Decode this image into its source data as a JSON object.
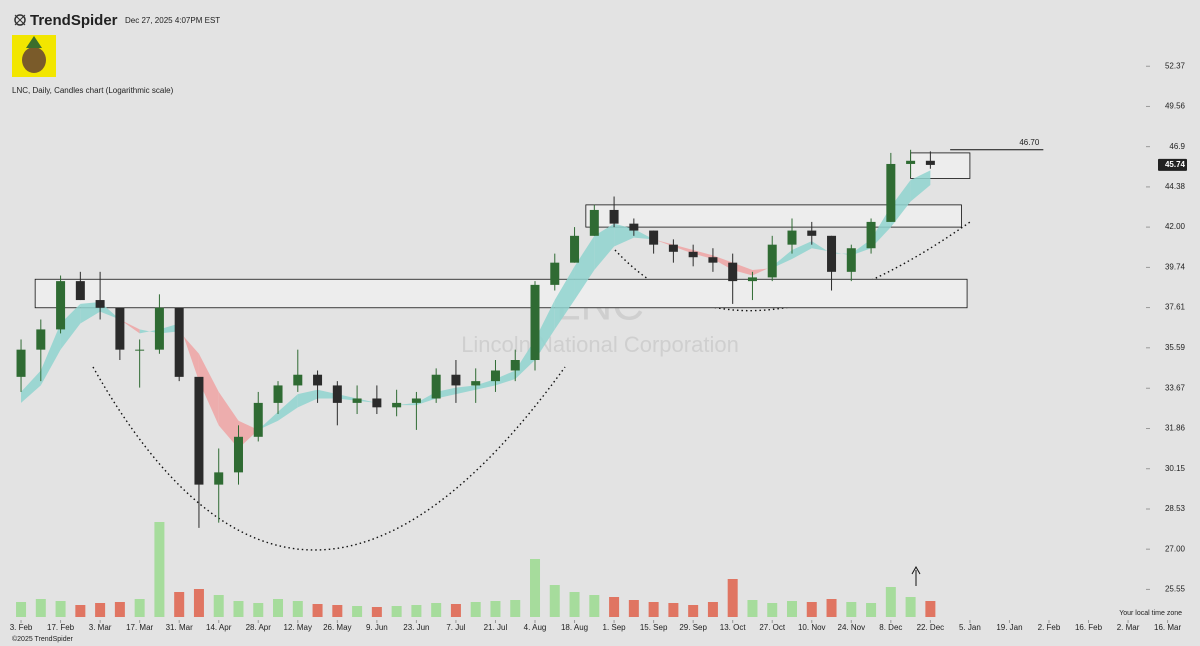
{
  "header": {
    "brand": "TrendSpider",
    "timestamp": "Dec 27, 2025 4:07PM EST",
    "description": "LNC, Daily, Candles chart (Logarithmic scale)"
  },
  "footer": {
    "timezone": "Your local time zone",
    "copyright": "©2025 TrendSpider"
  },
  "chart_data": {
    "type": "candlestick",
    "watermark_symbol": "LNC",
    "watermark_name": "Lincoln National Corporation",
    "log_scale": true,
    "up_color": "#2f6b33",
    "down_color": "#2b2b2b",
    "volume_up_color": "#a6dc9c",
    "volume_down_color": "#e07562",
    "ribbon_up_color": "#8fd3cf",
    "ribbon_down_color": "#efa3a3",
    "x": [
      0,
      7,
      14,
      21,
      28,
      35,
      42,
      49,
      56,
      63,
      70,
      77,
      84,
      91,
      98,
      105,
      112,
      119,
      126,
      133,
      140,
      147,
      154,
      161,
      168,
      175,
      182,
      189,
      196,
      203,
      210,
      217,
      224,
      231,
      238,
      245,
      252,
      259,
      266,
      273,
      280,
      287,
      294,
      301,
      308,
      315,
      322
    ],
    "open": [
      34.2,
      35.5,
      36.5,
      39.0,
      38.0,
      37.6,
      35.5,
      35.5,
      37.6,
      34.2,
      29.5,
      30.0,
      31.5,
      33.0,
      33.8,
      34.3,
      33.8,
      33.0,
      33.2,
      32.8,
      33.0,
      33.2,
      34.3,
      33.8,
      34.0,
      34.5,
      35.0,
      38.8,
      40.0,
      41.5,
      43.0,
      42.2,
      41.8,
      41.0,
      40.6,
      40.3,
      40.0,
      39.0,
      39.2,
      41.0,
      41.8,
      41.5,
      39.5,
      40.8,
      42.3,
      45.8,
      46.0
    ],
    "high": [
      36.0,
      37.0,
      39.3,
      39.5,
      39.5,
      37.5,
      36.0,
      38.3,
      37.5,
      34.0,
      31.0,
      32.0,
      33.5,
      34.0,
      35.5,
      34.5,
      34.0,
      33.8,
      33.8,
      33.6,
      33.5,
      34.6,
      35.0,
      34.6,
      35.0,
      35.5,
      39.0,
      40.5,
      42.0,
      43.3,
      43.8,
      42.5,
      41.8,
      41.3,
      41.0,
      40.8,
      40.5,
      39.5,
      41.5,
      42.5,
      42.3,
      41.5,
      41.0,
      42.5,
      46.5,
      46.7,
      46.6
    ],
    "low": [
      33.5,
      34.0,
      36.3,
      38.0,
      37.0,
      35.0,
      33.7,
      35.3,
      34.0,
      27.8,
      28.0,
      29.5,
      31.3,
      32.5,
      33.5,
      33.0,
      32.0,
      32.5,
      32.5,
      32.4,
      31.8,
      33.0,
      33.0,
      33.0,
      33.5,
      34.0,
      34.5,
      38.5,
      40.0,
      41.5,
      42.0,
      41.5,
      40.5,
      40.0,
      39.8,
      39.5,
      37.8,
      38.0,
      39.0,
      40.5,
      41.0,
      38.5,
      39.0,
      40.5,
      42.3,
      45.0,
      45.5
    ],
    "close": [
      35.5,
      36.5,
      39.0,
      38.0,
      37.6,
      35.5,
      35.5,
      37.6,
      34.2,
      29.5,
      30.0,
      31.5,
      33.0,
      33.8,
      34.3,
      33.8,
      33.0,
      33.2,
      32.8,
      33.0,
      33.2,
      34.3,
      33.8,
      34.0,
      34.5,
      35.0,
      38.8,
      40.0,
      41.5,
      43.0,
      42.2,
      41.8,
      41.0,
      40.6,
      40.3,
      40.0,
      39.0,
      39.2,
      41.0,
      41.8,
      41.5,
      39.5,
      40.8,
      42.3,
      45.8,
      46.0,
      45.74
    ],
    "volume": [
      1.5,
      1.8,
      1.6,
      1.2,
      1.4,
      1.5,
      1.8,
      9.5,
      2.5,
      2.8,
      2.2,
      1.6,
      1.4,
      1.8,
      1.6,
      1.3,
      1.2,
      1.1,
      1.0,
      1.1,
      1.2,
      1.4,
      1.3,
      1.5,
      1.6,
      1.7,
      5.8,
      3.2,
      2.5,
      2.2,
      2.0,
      1.7,
      1.5,
      1.4,
      1.2,
      1.5,
      3.8,
      1.7,
      1.4,
      1.6,
      1.5,
      1.8,
      1.5,
      1.4,
      3.0,
      2.0,
      1.6
    ],
    "ma_fast": [
      33.5,
      34.5,
      36.8,
      37.8,
      37.9,
      37,
      36.3,
      36.5,
      36.8,
      34,
      32,
      31,
      31.8,
      32.6,
      33.4,
      33.6,
      33.4,
      33.2,
      33,
      32.9,
      33,
      33.5,
      33.7,
      33.8,
      34.1,
      34.5,
      36,
      38,
      39.8,
      41.5,
      42.2,
      41.9,
      41.3,
      40.9,
      40.5,
      40.2,
      39.6,
      39.3,
      39.8,
      40.7,
      41.2,
      40.5,
      40.5,
      41.3,
      43.2,
      44.8,
      45.4
    ],
    "ma_slow": [
      33,
      33.8,
      35.5,
      36.8,
      37.4,
      37,
      36.5,
      36.3,
      36.4,
      35.3,
      33.5,
      32.2,
      31.8,
      32.2,
      32.8,
      33.2,
      33.2,
      33.1,
      33,
      32.9,
      32.9,
      33.2,
      33.4,
      33.6,
      33.8,
      34.1,
      35,
      36.5,
      38,
      39.6,
      40.9,
      41.4,
      41.3,
      41,
      40.7,
      40.4,
      40,
      39.6,
      39.7,
      40.2,
      40.8,
      40.6,
      40.4,
      40.8,
      42,
      43.5,
      44.5
    ],
    "zones": [
      {
        "low": 37.6,
        "high": 39.1,
        "from": 5,
        "to": 335
      },
      {
        "low": 42.0,
        "high": 43.3,
        "from": 200,
        "to": 333
      },
      {
        "low": 44.9,
        "high": 46.5,
        "from": 315,
        "to": 336
      }
    ],
    "level": {
      "value": 46.7,
      "label": "46.70"
    },
    "level_from": 329,
    "level_to": 362,
    "last_price": 45.74,
    "ylim": [
      24.5,
      55.8
    ],
    "yticks": [
      52.37,
      49.56,
      46.9,
      44.38,
      {
        "value": 42,
        "label": "42.00"
      },
      39.74,
      37.61,
      35.59,
      33.67,
      31.86,
      30.15,
      28.53,
      {
        "value": 27,
        "label": "27.00"
      },
      25.55
    ],
    "xlim": [
      -3.2,
      398
    ],
    "xticks": [
      {
        "value": 0,
        "label": "3. Feb"
      },
      {
        "value": 14,
        "label": "17. Feb"
      },
      {
        "value": 28,
        "label": "3. Mar"
      },
      {
        "value": 42,
        "label": "17. Mar"
      },
      {
        "value": 56,
        "label": "31. Mar"
      },
      {
        "value": 70,
        "label": "14. Apr"
      },
      {
        "value": 84,
        "label": "28. Apr"
      },
      {
        "value": 98,
        "label": "12. May"
      },
      {
        "value": 112,
        "label": "26. May"
      },
      {
        "value": 126,
        "label": "9. Jun"
      },
      {
        "value": 140,
        "label": "23. Jun"
      },
      {
        "value": 154,
        "label": "7. Jul"
      },
      {
        "value": 168,
        "label": "21. Jul"
      },
      {
        "value": 182,
        "label": "4. Aug"
      },
      {
        "value": 196,
        "label": "18. Aug"
      },
      {
        "value": 210,
        "label": "1. Sep"
      },
      {
        "value": 224,
        "label": "15. Sep"
      },
      {
        "value": 238,
        "label": "29. Sep"
      },
      {
        "value": 252,
        "label": "13. Oct"
      },
      {
        "value": 266,
        "label": "27. Oct"
      },
      {
        "value": 280,
        "label": "10. Nov"
      },
      {
        "value": 294,
        "label": "24. Nov"
      },
      {
        "value": 308,
        "label": "8. Dec"
      },
      {
        "value": 322,
        "label": "22. Dec"
      },
      {
        "value": 336,
        "label": "5. Jan"
      },
      {
        "value": 350,
        "label": "19. Jan"
      },
      {
        "value": 364,
        "label": "2. Feb"
      },
      {
        "value": 378,
        "label": "16. Feb"
      },
      {
        "value": 392,
        "label": "2. Mar"
      },
      {
        "value": 406,
        "label": "16. Mar"
      }
    ]
  }
}
